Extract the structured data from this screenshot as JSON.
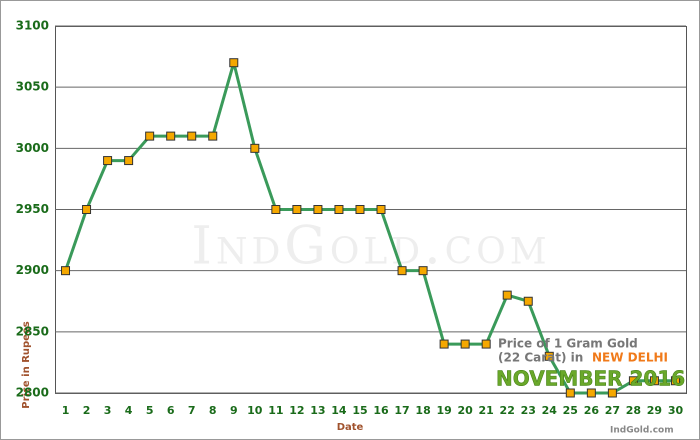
{
  "chart_data": {
    "type": "line",
    "x_label": "Date",
    "y_label": "Price in Rupees",
    "watermark": "IndGold.com",
    "annotation": {
      "line1": "Price of 1 Gram Gold",
      "line2": "(22 Carat) in",
      "city": "NEW DELHI",
      "month": "NOVEMBER 2016",
      "source": "IndGold.com"
    },
    "categories": [
      "1",
      "2",
      "3",
      "4",
      "5",
      "6",
      "7",
      "8",
      "9",
      "10",
      "11",
      "12",
      "13",
      "14",
      "15",
      "16",
      "17",
      "18",
      "19",
      "20",
      "21",
      "22",
      "23",
      "24",
      "25",
      "26",
      "27",
      "28",
      "29",
      "30"
    ],
    "series": [
      {
        "name": "Price",
        "color": "#3a9a5a",
        "marker_color": "#f5a800",
        "values": [
          2900,
          2950,
          2990,
          2990,
          3010,
          3010,
          3010,
          3010,
          3070,
          3000,
          2950,
          2950,
          2950,
          2950,
          2950,
          2950,
          2900,
          2900,
          2840,
          2840,
          2840,
          2880,
          2875,
          2830,
          2800,
          2800,
          2800,
          2810,
          2810,
          2810
        ]
      }
    ],
    "ylim": [
      2800,
      3100
    ],
    "yticks": [
      2800,
      2850,
      2900,
      2950,
      3000,
      3050,
      3100
    ],
    "grid": true
  }
}
